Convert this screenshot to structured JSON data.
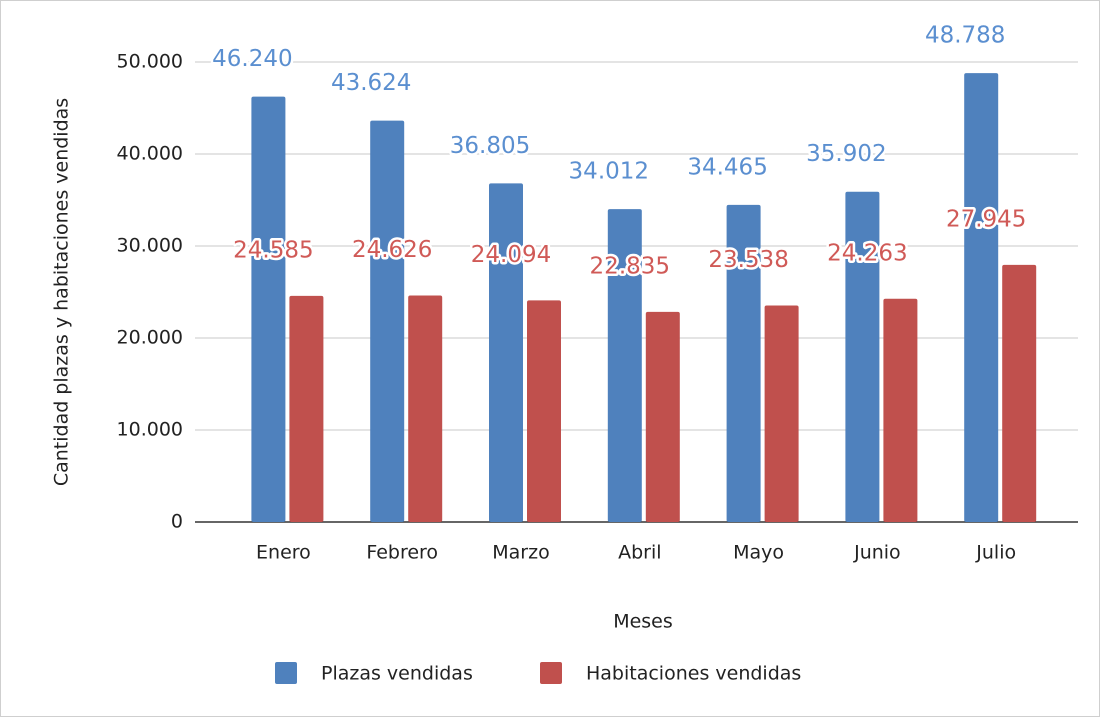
{
  "chart_data": {
    "type": "bar",
    "x_label": "Meses",
    "y_label": "Cantidad plazas y habitaciones vendidas",
    "categories": [
      "Enero",
      "Febrero",
      "Marzo",
      "Abril",
      "Mayo",
      "Junio",
      "Julio"
    ],
    "series": [
      {
        "name": "Plazas vendidas",
        "color": "#4f81bd",
        "values": [
          46240,
          43624,
          36805,
          34012,
          34465,
          35902,
          48788
        ],
        "value_labels": [
          "46.240",
          "43.624",
          "36.805",
          "34.012",
          "34.465",
          "35.902",
          "48.788"
        ]
      },
      {
        "name": "Habitaciones vendidas",
        "color": "#c0504d",
        "values": [
          24585,
          24626,
          24094,
          22835,
          23538,
          24263,
          27945
        ],
        "value_labels": [
          "24.585",
          "24.626",
          "24.094",
          "22.835",
          "23.538",
          "24.263",
          "27.945"
        ]
      }
    ],
    "ylim": [
      0,
      50000
    ],
    "yticks": [
      {
        "value": 0,
        "label": "0"
      },
      {
        "value": 10000,
        "label": "10.000"
      },
      {
        "value": 20000,
        "label": "20.000"
      },
      {
        "value": 30000,
        "label": "30.000"
      },
      {
        "value": 40000,
        "label": "40.000"
      },
      {
        "value": 50000,
        "label": "50.000"
      }
    ],
    "grid": true,
    "legend": "bottom"
  }
}
